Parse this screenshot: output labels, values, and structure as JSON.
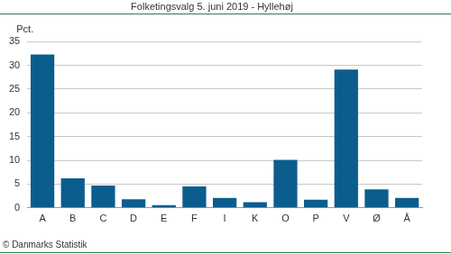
{
  "chart_data": {
    "type": "bar",
    "title": "Folketingsvalg 5. juni 2019 - Hyllehøj",
    "ylabel": "Pct.",
    "source": "© Danmarks Statistik",
    "categories": [
      "A",
      "B",
      "C",
      "D",
      "E",
      "F",
      "I",
      "K",
      "O",
      "P",
      "V",
      "Ø",
      "Å"
    ],
    "values": [
      32.3,
      6.2,
      4.7,
      1.8,
      0.6,
      4.5,
      2.1,
      1.2,
      10.1,
      1.7,
      29.1,
      3.9,
      2.1
    ],
    "color": "#0b5d8e",
    "ylim": [
      0,
      35
    ],
    "yticks": [
      0,
      5,
      10,
      15,
      20,
      25,
      30,
      35
    ],
    "grid": true
  }
}
